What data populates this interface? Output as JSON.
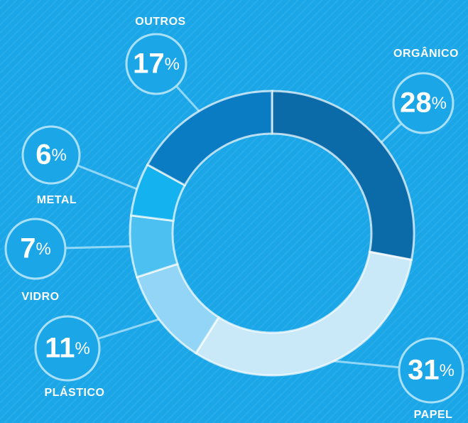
{
  "chart_data": {
    "type": "donut",
    "categories": [
      "ORGÂNICO",
      "PAPEL",
      "PLÁSTICO",
      "VIDRO",
      "METAL",
      "OUTROS"
    ],
    "values": [
      28,
      31,
      11,
      7,
      6,
      17
    ],
    "value_labels": [
      "28%",
      "31%",
      "11%",
      "7%",
      "6%",
      "17%"
    ],
    "colors": [
      "#0b6aa8",
      "#c9e9f9",
      "#93d5f6",
      "#4cc0f1",
      "#14b2ef",
      "#0a7cc4"
    ]
  }
}
